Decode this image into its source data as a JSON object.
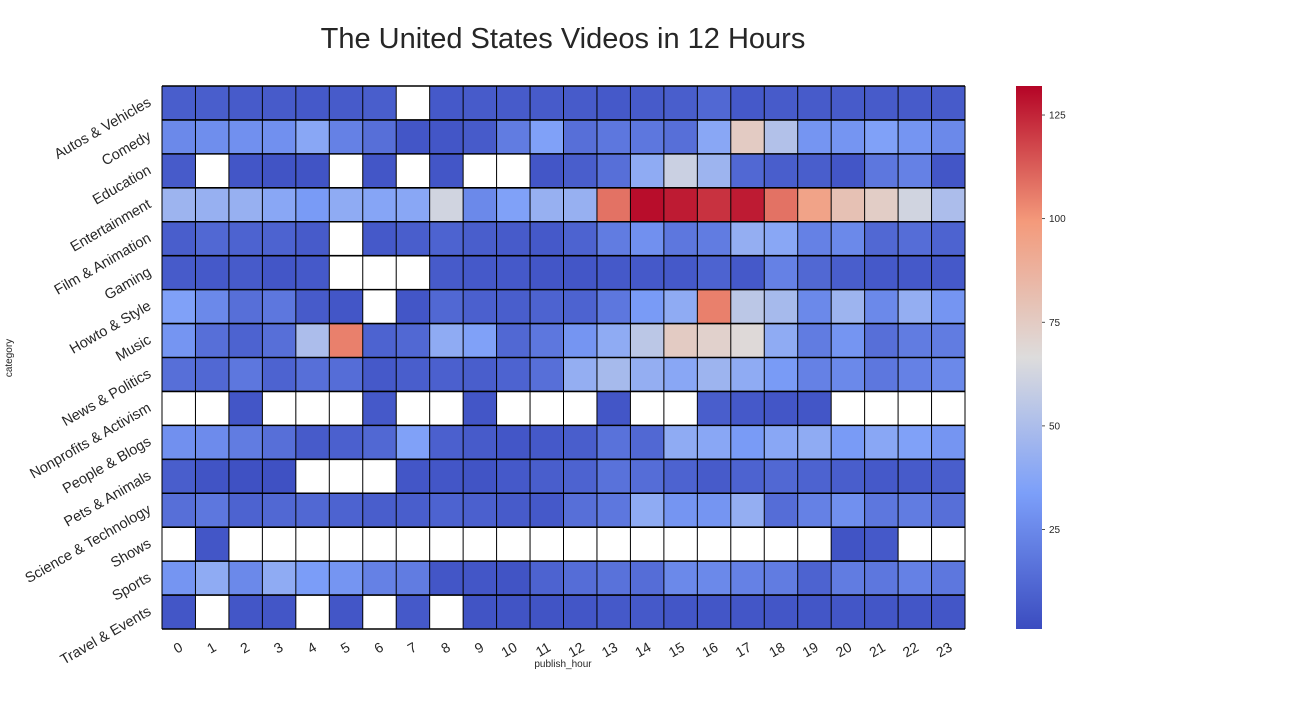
{
  "chart_data": {
    "type": "heatmap",
    "title": "The United States Videos in 12 Hours",
    "xlabel": "publish_hour",
    "ylabel": "category",
    "x": [
      "0",
      "1",
      "2",
      "3",
      "4",
      "5",
      "6",
      "7",
      "8",
      "9",
      "10",
      "11",
      "12",
      "13",
      "14",
      "15",
      "16",
      "17",
      "18",
      "19",
      "20",
      "21",
      "22",
      "23"
    ],
    "y": [
      "Autos & Vehicles",
      "Comedy",
      "Education",
      "Entertainment",
      "Film & Animation",
      "Gaming",
      "Howto & Style",
      "Music",
      "News & Politics",
      "Nonprofits & Activism",
      "People & Blogs",
      "Pets & Animals",
      "Science & Technology",
      "Shows",
      "Sports",
      "Travel & Events"
    ],
    "values": [
      [
        8,
        8,
        7,
        7,
        6,
        7,
        8,
        null,
        6,
        7,
        7,
        7,
        7,
        6,
        7,
        8,
        12,
        6,
        7,
        7,
        7,
        7,
        7,
        7
      ],
      [
        25,
        27,
        28,
        28,
        38,
        22,
        15,
        5,
        5,
        7,
        20,
        35,
        15,
        18,
        18,
        15,
        38,
        75,
        52,
        30,
        30,
        35,
        30,
        25
      ],
      [
        7,
        null,
        5,
        4,
        4,
        null,
        5,
        null,
        5,
        null,
        null,
        5,
        8,
        15,
        40,
        60,
        45,
        12,
        8,
        8,
        5,
        18,
        22,
        5
      ],
      [
        45,
        43,
        43,
        38,
        32,
        40,
        37,
        38,
        62,
        25,
        35,
        43,
        43,
        108,
        130,
        127,
        122,
        127,
        108,
        95,
        80,
        74,
        62,
        50
      ],
      [
        8,
        12,
        10,
        10,
        7,
        null,
        6,
        8,
        10,
        8,
        7,
        6,
        10,
        20,
        28,
        18,
        20,
        42,
        38,
        22,
        25,
        12,
        14,
        10
      ],
      [
        7,
        6,
        7,
        5,
        6,
        null,
        null,
        null,
        7,
        6,
        6,
        5,
        5,
        6,
        6,
        6,
        10,
        6,
        22,
        12,
        8,
        6,
        6,
        6
      ],
      [
        35,
        25,
        15,
        18,
        7,
        5,
        null,
        5,
        12,
        9,
        8,
        10,
        10,
        18,
        32,
        40,
        105,
        55,
        48,
        25,
        45,
        25,
        42,
        30
      ],
      [
        30,
        15,
        10,
        15,
        50,
        105,
        10,
        12,
        40,
        35,
        12,
        18,
        30,
        40,
        55,
        75,
        72,
        68,
        40,
        20,
        30,
        15,
        20,
        20
      ],
      [
        15,
        12,
        18,
        10,
        15,
        14,
        6,
        8,
        9,
        8,
        10,
        15,
        42,
        48,
        42,
        38,
        45,
        40,
        32,
        22,
        25,
        18,
        22,
        25
      ],
      [
        null,
        null,
        5,
        null,
        null,
        null,
        6,
        null,
        null,
        5,
        null,
        null,
        null,
        5,
        null,
        null,
        8,
        6,
        5,
        5,
        null,
        null,
        null,
        null
      ],
      [
        28,
        26,
        20,
        15,
        7,
        9,
        12,
        35,
        9,
        7,
        5,
        6,
        8,
        16,
        12,
        40,
        38,
        32,
        38,
        40,
        32,
        38,
        35,
        30
      ],
      [
        8,
        4,
        3,
        3,
        null,
        null,
        null,
        5,
        5,
        4,
        6,
        8,
        10,
        16,
        14,
        10,
        7,
        10,
        12,
        10,
        8,
        6,
        7,
        8
      ],
      [
        15,
        18,
        10,
        12,
        12,
        10,
        8,
        8,
        10,
        9,
        7,
        6,
        15,
        18,
        40,
        30,
        30,
        42,
        14,
        22,
        28,
        18,
        20,
        15
      ],
      [
        null,
        5,
        null,
        null,
        null,
        null,
        null,
        null,
        null,
        null,
        null,
        null,
        null,
        null,
        null,
        null,
        null,
        null,
        null,
        null,
        4,
        6,
        null,
        null
      ],
      [
        30,
        40,
        25,
        40,
        33,
        30,
        22,
        20,
        5,
        5,
        4,
        10,
        14,
        16,
        14,
        25,
        25,
        22,
        20,
        10,
        20,
        18,
        22,
        18
      ],
      [
        5,
        null,
        5,
        5,
        null,
        5,
        null,
        6,
        null,
        4,
        4,
        4,
        5,
        6,
        6,
        5,
        5,
        5,
        5,
        5,
        5,
        5,
        5,
        5
      ]
    ],
    "vmin": 1,
    "vmax": 132,
    "colormap": "coolwarm",
    "colorbar_ticks": [
      25,
      50,
      75,
      100,
      125
    ],
    "missing_color": "#ffffff",
    "grid_color": "#000000"
  }
}
